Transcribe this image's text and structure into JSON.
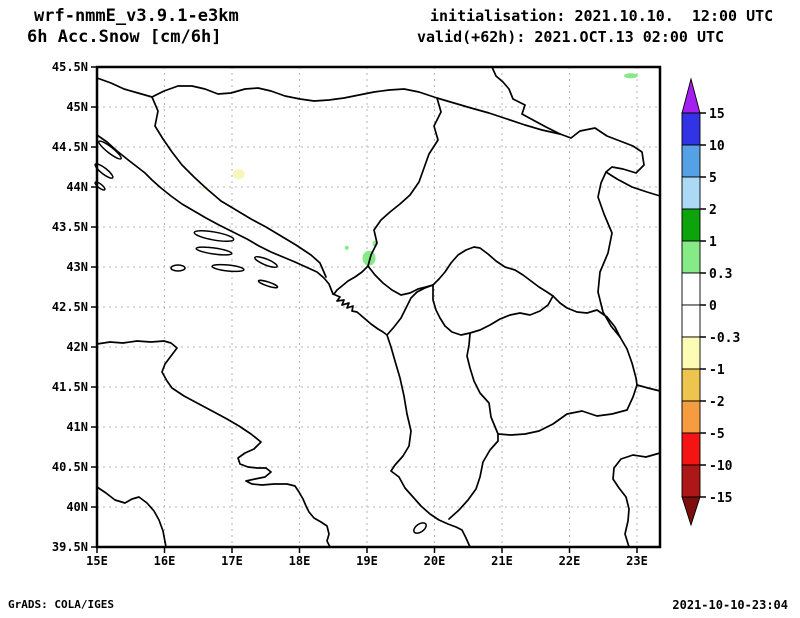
{
  "header": {
    "model": "wrf-nmmE_v3.9.1-e3km",
    "product": "6h Acc.Snow [cm/6h]",
    "init": "initialisation: 2021.10.10.  12:00 UTC",
    "valid": "valid(+62h): 2021.OCT.13 02:00 UTC"
  },
  "footer": {
    "credit": "GrADS: COLA/IGES",
    "generated": "2021-10-10-23:04"
  },
  "chart_data": {
    "type": "map-filled-contour",
    "title": "6h Acc.Snow [cm/6h]",
    "model": "wrf-nmmE_v3.9.1-e3km",
    "init_time": "2021.10.10. 12:00 UTC",
    "valid_time": "2021.OCT.13 02:00 UTC (+62h)",
    "units": "cm/6h",
    "region": {
      "lon_min": 15.0,
      "lon_max": 23.35,
      "lat_min": 39.5,
      "lat_max": 45.5
    },
    "lat_ticks": [
      "45.5N",
      "45N",
      "44.5N",
      "44N",
      "43.5N",
      "43N",
      "42.5N",
      "42N",
      "41.5N",
      "41N",
      "40.5N",
      "40N",
      "39.5N"
    ],
    "lon_ticks": [
      "15E",
      "16E",
      "17E",
      "18E",
      "19E",
      "20E",
      "21E",
      "22E",
      "23E"
    ],
    "grid": true,
    "colorbar": {
      "orientation": "vertical",
      "position": "right",
      "levels": [
        15,
        10,
        5,
        2,
        1,
        0.3,
        0,
        -0.3,
        -1,
        -2,
        -5,
        -10,
        -15
      ],
      "band_colors_top_to_bottom": [
        "#a21fef",
        "#3333e6",
        "#55a1e6",
        "#abd9f6",
        "#0ca30c",
        "#86ea86",
        "#ffffff",
        "#ffffff",
        "#fcfcb4",
        "#edc44e",
        "#f59b40",
        "#f51414",
        "#ad1717",
        "#7c0e0e"
      ]
    },
    "snow_patches": [
      {
        "lon": 19.03,
        "lat": 43.11,
        "rx": 6.5,
        "ry": 7.5,
        "color": "#86ea86",
        "value": "0.3 to 1"
      },
      {
        "lon": 18.7,
        "lat": 43.24,
        "rx": 2.0,
        "ry": 2.0,
        "color": "#86ea86",
        "value": "0.3 to 1"
      },
      {
        "lon": 19.12,
        "lat": 43.29,
        "rx": 2.5,
        "ry": 3.0,
        "color": "#86ea86",
        "value": "0.3 to 1"
      },
      {
        "lon": 22.91,
        "lat": 45.39,
        "rx": 7.0,
        "ry": 2.5,
        "color": "#86ea86",
        "value": "0.3 to 1"
      },
      {
        "lon": 17.1,
        "lat": 44.16,
        "rx": 6.0,
        "ry": 5.0,
        "color": "#f6f6bc",
        "value": "-0.3 to -1"
      },
      {
        "lon": 16.59,
        "lat": 43.99,
        "rx": 4.0,
        "ry": 1.5,
        "color": "#f2f2c6",
        "value": "-0.3 to -1"
      }
    ]
  }
}
